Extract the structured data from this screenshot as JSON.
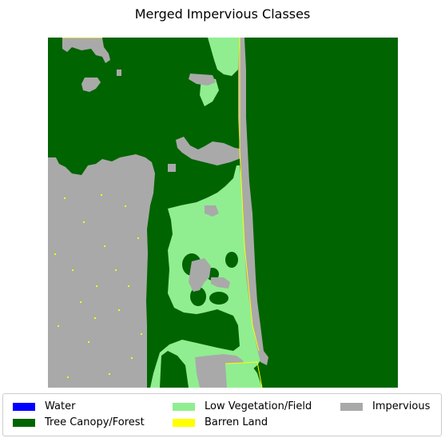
{
  "title": "Merged Impervious Classes",
  "legend": [
    {
      "label": "Water",
      "color": "#0000ff"
    },
    {
      "label": "Tree Canopy/Forest",
      "color": "#006400"
    },
    {
      "label": "Low Vegetation/Field",
      "color": "#90ee90"
    },
    {
      "label": "Barren Land",
      "color": "#ffff00"
    },
    {
      "label": "Impervious",
      "color": "#a9a9a9"
    }
  ],
  "colors": {
    "forest": "#006400",
    "low_vegetation": "#90ee90",
    "impervious": "#a9a9a9",
    "barren": "#ffff00",
    "water": "#0000ff"
  }
}
